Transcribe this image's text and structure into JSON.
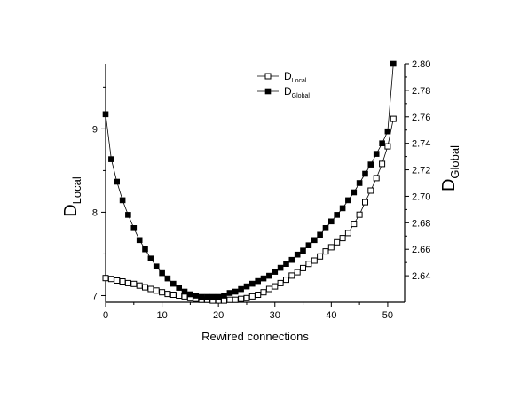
{
  "chart_data": {
    "type": "line",
    "xlabel": "Rewired connections",
    "ylabel_left": {
      "main": "D",
      "sub": "Local"
    },
    "ylabel_right": {
      "main": "D",
      "sub": "Global"
    },
    "xlim": [
      0,
      53
    ],
    "ylim_left": [
      6.92,
      9.78
    ],
    "ylim_right": [
      2.62,
      2.8
    ],
    "x_ticks": [
      0,
      10,
      20,
      30,
      40,
      50
    ],
    "y_left_ticks": [
      7,
      8,
      9
    ],
    "y_right_ticks": [
      2.64,
      2.66,
      2.68,
      2.7,
      2.72,
      2.74,
      2.76,
      2.78,
      2.8
    ],
    "legend": {
      "position": "top-center",
      "entries": [
        {
          "main": "D",
          "sub": "Local",
          "marker": "open-square"
        },
        {
          "main": "D",
          "sub": "Global",
          "marker": "filled-square"
        }
      ]
    },
    "series": [
      {
        "legend_main": "D",
        "legend_sub": "Local",
        "axis": "left",
        "marker": "open-square",
        "x": [
          0,
          1,
          2,
          3,
          4,
          5,
          6,
          7,
          8,
          9,
          10,
          11,
          12,
          13,
          14,
          15,
          16,
          17,
          18,
          19,
          20,
          21,
          22,
          23,
          24,
          25,
          26,
          27,
          28,
          29,
          30,
          31,
          32,
          33,
          34,
          35,
          36,
          37,
          38,
          39,
          40,
          41,
          42,
          43,
          44,
          45,
          46,
          47,
          48,
          49,
          50,
          51
        ],
        "values": [
          7.21,
          7.2,
          7.18,
          7.17,
          7.15,
          7.14,
          7.12,
          7.1,
          7.08,
          7.06,
          7.04,
          7.02,
          7.01,
          7.0,
          6.99,
          6.97,
          6.96,
          6.95,
          6.95,
          6.94,
          6.94,
          6.94,
          6.95,
          6.95,
          6.96,
          6.97,
          6.99,
          7.01,
          7.04,
          7.08,
          7.11,
          7.15,
          7.19,
          7.24,
          7.28,
          7.33,
          7.38,
          7.42,
          7.47,
          7.53,
          7.58,
          7.64,
          7.69,
          7.75,
          7.86,
          7.97,
          8.12,
          8.26,
          8.41,
          8.58,
          8.79,
          9.12
        ]
      },
      {
        "legend_main": "D",
        "legend_sub": "Global",
        "axis": "right",
        "marker": "filled-square",
        "x": [
          0,
          1,
          2,
          3,
          4,
          5,
          6,
          7,
          8,
          9,
          10,
          11,
          12,
          13,
          14,
          15,
          16,
          17,
          18,
          19,
          20,
          21,
          22,
          23,
          24,
          25,
          26,
          27,
          28,
          29,
          30,
          31,
          32,
          33,
          34,
          35,
          36,
          37,
          38,
          39,
          40,
          41,
          42,
          43,
          44,
          45,
          46,
          47,
          48,
          49,
          50,
          51
        ],
        "values": [
          2.762,
          2.728,
          2.711,
          2.697,
          2.686,
          2.676,
          2.667,
          2.66,
          2.653,
          2.647,
          2.642,
          2.638,
          2.634,
          2.631,
          2.628,
          2.626,
          2.625,
          2.624,
          2.624,
          2.624,
          2.624,
          2.625,
          2.627,
          2.628,
          2.63,
          2.632,
          2.634,
          2.636,
          2.638,
          2.64,
          2.643,
          2.646,
          2.649,
          2.652,
          2.656,
          2.659,
          2.663,
          2.667,
          2.671,
          2.676,
          2.681,
          2.686,
          2.691,
          2.697,
          2.703,
          2.71,
          2.717,
          2.724,
          2.732,
          2.74,
          2.749,
          2.8
        ]
      }
    ]
  }
}
